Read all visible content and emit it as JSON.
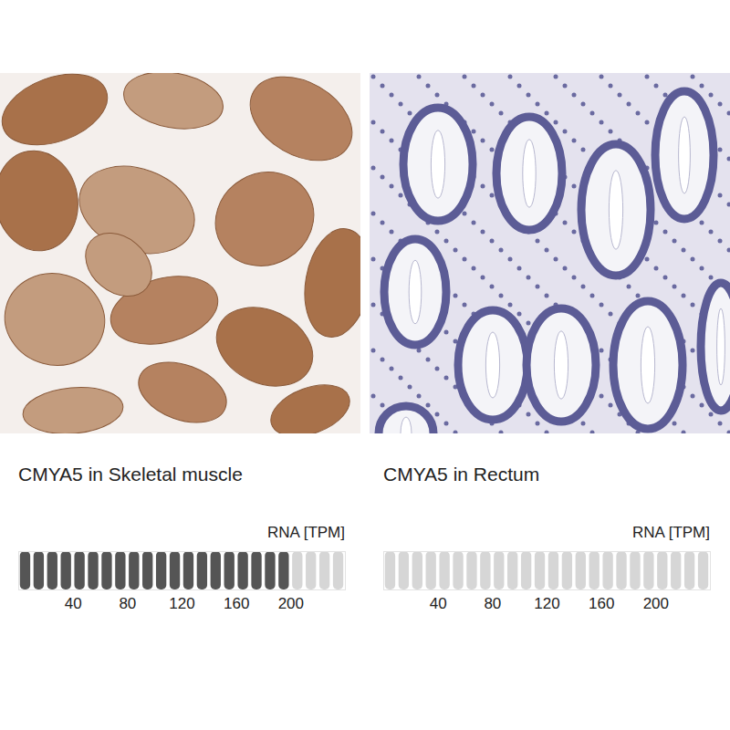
{
  "chart_data": [
    {
      "type": "segmented_bar",
      "title": "CMYA5 in Skeletal muscle",
      "label": "RNA [TPM]",
      "values": [
        200
      ],
      "color": "#555555",
      "xlim": [
        0,
        240
      ],
      "xticks": [
        40,
        80,
        120,
        160,
        200
      ],
      "tick_labels": "x"
    },
    {
      "type": "segmented_bar",
      "title": "CMYA5 in Rectum",
      "label": "RNA [TPM]",
      "values": [
        0
      ],
      "color": "#555555",
      "xlim": [
        0,
        240
      ],
      "xticks": [
        40,
        80,
        120,
        160,
        200
      ],
      "tick_labels": "x"
    }
  ]
}
